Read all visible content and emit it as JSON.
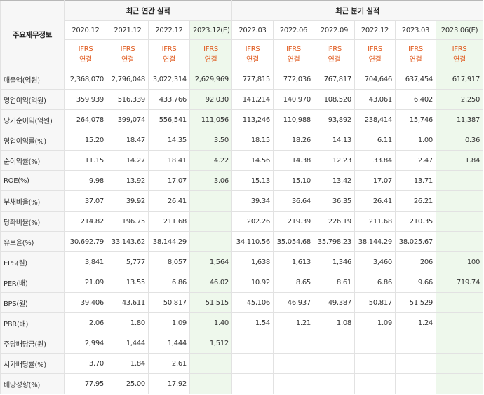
{
  "header": {
    "row_head": "주요재무정보",
    "annual_title": "최근 연간 실적",
    "quarter_title": "최근 분기 실적",
    "periods": [
      {
        "date": "2020.12",
        "std1": "IFRS",
        "std2": "연결"
      },
      {
        "date": "2021.12",
        "std1": "IFRS",
        "std2": "연결"
      },
      {
        "date": "2022.12",
        "std1": "IFRS",
        "std2": "연결"
      },
      {
        "date": "2023.12(E)",
        "std1": "IFRS",
        "std2": "연결"
      },
      {
        "date": "2022.03",
        "std1": "IFRS",
        "std2": "연결"
      },
      {
        "date": "2022.06",
        "std1": "IFRS",
        "std2": "연결"
      },
      {
        "date": "2022.09",
        "std1": "IFRS",
        "std2": "연결"
      },
      {
        "date": "2022.12",
        "std1": "IFRS",
        "std2": "연결"
      },
      {
        "date": "2023.03",
        "std1": "IFRS",
        "std2": "연결"
      },
      {
        "date": "2023.06(E)",
        "std1": "IFRS",
        "std2": "연결"
      }
    ]
  },
  "rows": [
    {
      "label": "매출액(억원)",
      "values": [
        "2,368,070",
        "2,796,048",
        "3,022,314",
        "2,629,969",
        "777,815",
        "772,036",
        "767,817",
        "704,646",
        "637,454",
        "617,917"
      ]
    },
    {
      "label": "영업이익(억원)",
      "values": [
        "359,939",
        "516,339",
        "433,766",
        "92,030",
        "141,214",
        "140,970",
        "108,520",
        "43,061",
        "6,402",
        "2,250"
      ]
    },
    {
      "label": "당기순이익(억원)",
      "values": [
        "264,078",
        "399,074",
        "556,541",
        "111,056",
        "113,246",
        "110,988",
        "93,892",
        "238,414",
        "15,746",
        "11,387"
      ]
    },
    {
      "label": "영업이익률(%)",
      "values": [
        "15.20",
        "18.47",
        "14.35",
        "3.50",
        "18.15",
        "18.26",
        "14.13",
        "6.11",
        "1.00",
        "0.36"
      ]
    },
    {
      "label": "순이익률(%)",
      "values": [
        "11.15",
        "14.27",
        "18.41",
        "4.22",
        "14.56",
        "14.38",
        "12.23",
        "33.84",
        "2.47",
        "1.84"
      ]
    },
    {
      "label": "ROE(%)",
      "values": [
        "9.98",
        "13.92",
        "17.07",
        "3.06",
        "15.13",
        "15.10",
        "13.42",
        "17.07",
        "13.71",
        ""
      ]
    },
    {
      "label": "부채비율(%)",
      "values": [
        "37.07",
        "39.92",
        "26.41",
        "",
        "39.34",
        "36.64",
        "36.35",
        "26.41",
        "26.21",
        ""
      ]
    },
    {
      "label": "당좌비율(%)",
      "values": [
        "214.82",
        "196.75",
        "211.68",
        "",
        "202.26",
        "219.39",
        "226.19",
        "211.68",
        "210.35",
        ""
      ]
    },
    {
      "label": "유보율(%)",
      "values": [
        "30,692.79",
        "33,143.62",
        "38,144.29",
        "",
        "34,110.56",
        "35,054.68",
        "35,798.23",
        "38,144.29",
        "38,025.67",
        ""
      ]
    },
    {
      "label": "EPS(원)",
      "values": [
        "3,841",
        "5,777",
        "8,057",
        "1,564",
        "1,638",
        "1,613",
        "1,346",
        "3,460",
        "206",
        "100"
      ]
    },
    {
      "label": "PER(배)",
      "values": [
        "21.09",
        "13.55",
        "6.86",
        "46.02",
        "10.92",
        "8.65",
        "8.61",
        "6.86",
        "9.66",
        "719.74"
      ]
    },
    {
      "label": "BPS(원)",
      "values": [
        "39,406",
        "43,611",
        "50,817",
        "51,515",
        "45,106",
        "46,937",
        "49,387",
        "50,817",
        "51,529",
        ""
      ]
    },
    {
      "label": "PBR(배)",
      "values": [
        "2.06",
        "1.80",
        "1.09",
        "1.40",
        "1.54",
        "1.21",
        "1.08",
        "1.09",
        "1.24",
        ""
      ]
    },
    {
      "label": "주당배당금(원)",
      "values": [
        "2,994",
        "1,444",
        "1,444",
        "1,512",
        "",
        "",
        "",
        "",
        "",
        ""
      ]
    },
    {
      "label": "시가배당률(%)",
      "values": [
        "3.70",
        "1.84",
        "2.61",
        "",
        "",
        "",
        "",
        "",
        "",
        ""
      ]
    },
    {
      "label": "배당성향(%)",
      "values": [
        "77.95",
        "25.00",
        "17.92",
        "",
        "",
        "",
        "",
        "",
        "",
        ""
      ]
    }
  ]
}
